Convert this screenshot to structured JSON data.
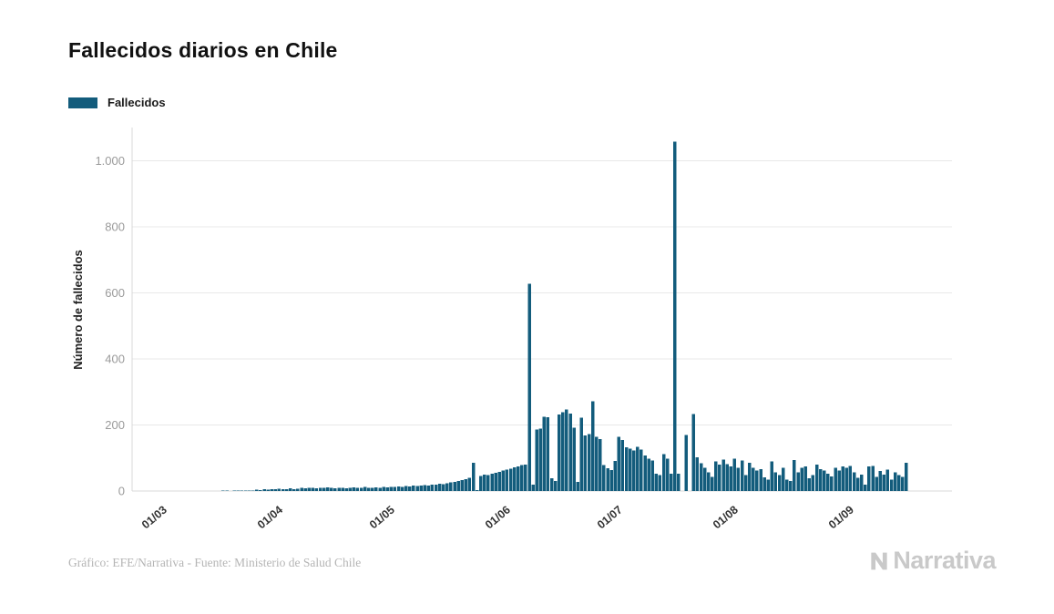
{
  "title": "Fallecidos diarios en Chile",
  "legend": {
    "label": "Fallecidos",
    "swatch_color": "#135C7C"
  },
  "footer": {
    "credit": "Gráfico: EFE/Narrativa - Fuente: Ministerio de Salud Chile",
    "logo_text": "Narrativa"
  },
  "colors": {
    "bar": "#135C7C",
    "grid": "#e8e8e8",
    "axis_line": "#d9d9d9",
    "y_tick_label": "#9a9a9a",
    "x_tick_label": "#333333",
    "title": "#111111",
    "footer_text": "#b5b5b5",
    "logo": "#c9c9c9"
  },
  "chart_data": {
    "type": "bar",
    "title": "Fallecidos diarios en Chile",
    "series_name": "Fallecidos",
    "xlabel": "",
    "ylabel": "Número de fallecidos",
    "ylim": [
      0,
      1100
    ],
    "grid": true,
    "legend_position": "top-left",
    "bar_color": "#135C7C",
    "y_ticks": [
      {
        "value": 0,
        "label": "0"
      },
      {
        "value": 200,
        "label": "200"
      },
      {
        "value": 400,
        "label": "400"
      },
      {
        "value": 600,
        "label": "600"
      },
      {
        "value": 800,
        "label": "800"
      },
      {
        "value": 1000,
        "label": "1.000"
      }
    ],
    "x_ticks": [
      {
        "index": 0,
        "label": "01/03"
      },
      {
        "index": 31,
        "label": "01/04"
      },
      {
        "index": 61,
        "label": "01/05"
      },
      {
        "index": 92,
        "label": "01/06"
      },
      {
        "index": 122,
        "label": "01/07"
      },
      {
        "index": 153,
        "label": "01/08"
      },
      {
        "index": 184,
        "label": "01/09"
      }
    ],
    "x_unit": "day",
    "values": [
      0,
      0,
      0,
      0,
      0,
      0,
      0,
      0,
      0,
      0,
      0,
      0,
      0,
      0,
      0,
      0,
      0,
      0,
      0,
      0,
      1,
      1,
      0,
      1,
      2,
      1,
      2,
      1,
      2,
      4,
      3,
      5,
      4,
      6,
      5,
      7,
      6,
      5,
      8,
      6,
      7,
      9,
      8,
      10,
      9,
      8,
      10,
      9,
      11,
      9,
      8,
      10,
      9,
      8,
      10,
      11,
      9,
      10,
      12,
      10,
      9,
      11,
      10,
      12,
      11,
      13,
      12,
      14,
      13,
      15,
      14,
      16,
      15,
      17,
      18,
      16,
      19,
      20,
      22,
      21,
      24,
      26,
      28,
      30,
      33,
      36,
      40,
      85,
      3,
      45,
      50,
      48,
      52,
      55,
      58,
      62,
      65,
      68,
      72,
      75,
      78,
      80,
      627,
      19,
      186,
      189,
      225,
      223,
      38,
      30,
      232,
      238,
      247,
      235,
      192,
      28,
      222,
      168,
      173,
      272,
      164,
      157,
      78,
      69,
      64,
      91,
      164,
      155,
      132,
      128,
      123,
      134,
      125,
      107,
      98,
      93,
      52,
      48,
      111,
      98,
      52,
      1057,
      52,
      0,
      170,
      0,
      233,
      102,
      84,
      70,
      57,
      43,
      89,
      80,
      95,
      81,
      75,
      98,
      71,
      93,
      48,
      86,
      71,
      62,
      66,
      41,
      35,
      89,
      57,
      48,
      71,
      35,
      30,
      94,
      57,
      71,
      75,
      39,
      48,
      80,
      66,
      62,
      53,
      44,
      70,
      62,
      75,
      70,
      76,
      56,
      40,
      49,
      20,
      74,
      76,
      43,
      61,
      49,
      65,
      34,
      56,
      48,
      43,
      85
    ]
  }
}
